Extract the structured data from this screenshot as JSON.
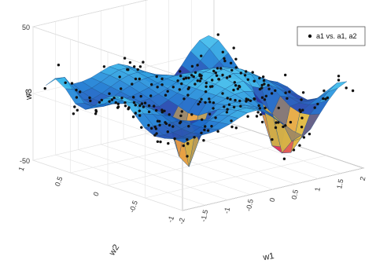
{
  "chart_data": {
    "type": "scatter",
    "subtype": "3d-surface-with-scatter",
    "title": "",
    "xlabel": "w1",
    "ylabel": "w2",
    "zlabel": "w3",
    "x_ticks": [
      "-2",
      "-1.5",
      "-1",
      "-0.5",
      "0",
      "0.5",
      "1",
      "1.5",
      "2"
    ],
    "y_ticks": [
      "-1",
      "-0.5",
      "0",
      "0.5",
      "1"
    ],
    "z_ticks": [
      "-50",
      "0",
      "50"
    ],
    "xlim": [
      -2,
      2
    ],
    "ylim": [
      -1,
      1
    ],
    "zlim": [
      -50,
      50
    ],
    "grid": true,
    "legend": {
      "position": "top-right",
      "entries": [
        "a1 vs. a1, a2"
      ]
    },
    "series": [
      {
        "name": "a1 vs. a1, a2",
        "kind": "scatter",
        "marker": "dot",
        "color": "#111111"
      },
      {
        "kind": "surface",
        "colormap": "parula",
        "colors": [
          "#1fa3df",
          "#3fc1ee",
          "#1767c8",
          "#2b2b9e",
          "#e8e33c",
          "#f0b43a",
          "#e0336a",
          "#b9277f"
        ]
      }
    ]
  }
}
